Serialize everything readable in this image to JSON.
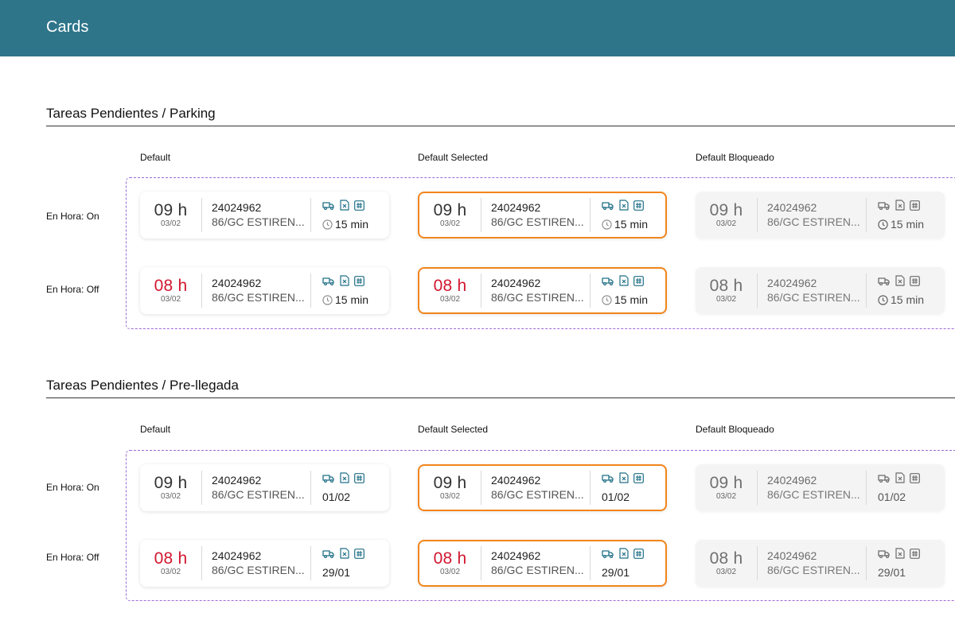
{
  "app": {
    "title": "Cards"
  },
  "columns": [
    "Default",
    "Default Selected",
    "Default Bloqueado"
  ],
  "row_labels": [
    "En Hora: On",
    "En Hora: Off"
  ],
  "colors": {
    "header": "#2e758a",
    "accent_icon": "#1f6f86",
    "late": "#d2162f",
    "selected_border": "#f2851c",
    "dashed_border": "#9b6ad9"
  },
  "icons": [
    "truck-icon",
    "excel-file-icon",
    "hash-icon",
    "clock-icon"
  ],
  "sections": [
    {
      "title": "Tareas Pendientes / Parking",
      "rows": [
        {
          "hour": "09 h",
          "date": "03/02",
          "code": "24024962",
          "desc": "86/GC ESTIREN...",
          "meta": "15 min"
        },
        {
          "hour": "08 h",
          "date": "03/02",
          "code": "24024962",
          "desc": "86/GC ESTIREN...",
          "meta": "15 min"
        }
      ]
    },
    {
      "title": "Tareas Pendientes / Pre-llegada",
      "rows": [
        {
          "hour": "09 h",
          "date": "03/02",
          "code": "24024962",
          "desc": "86/GC ESTIREN...",
          "meta": "01/02"
        },
        {
          "hour": "08 h",
          "date": "03/02",
          "code": "24024962",
          "desc": "86/GC ESTIREN...",
          "meta": "29/01"
        }
      ]
    }
  ]
}
